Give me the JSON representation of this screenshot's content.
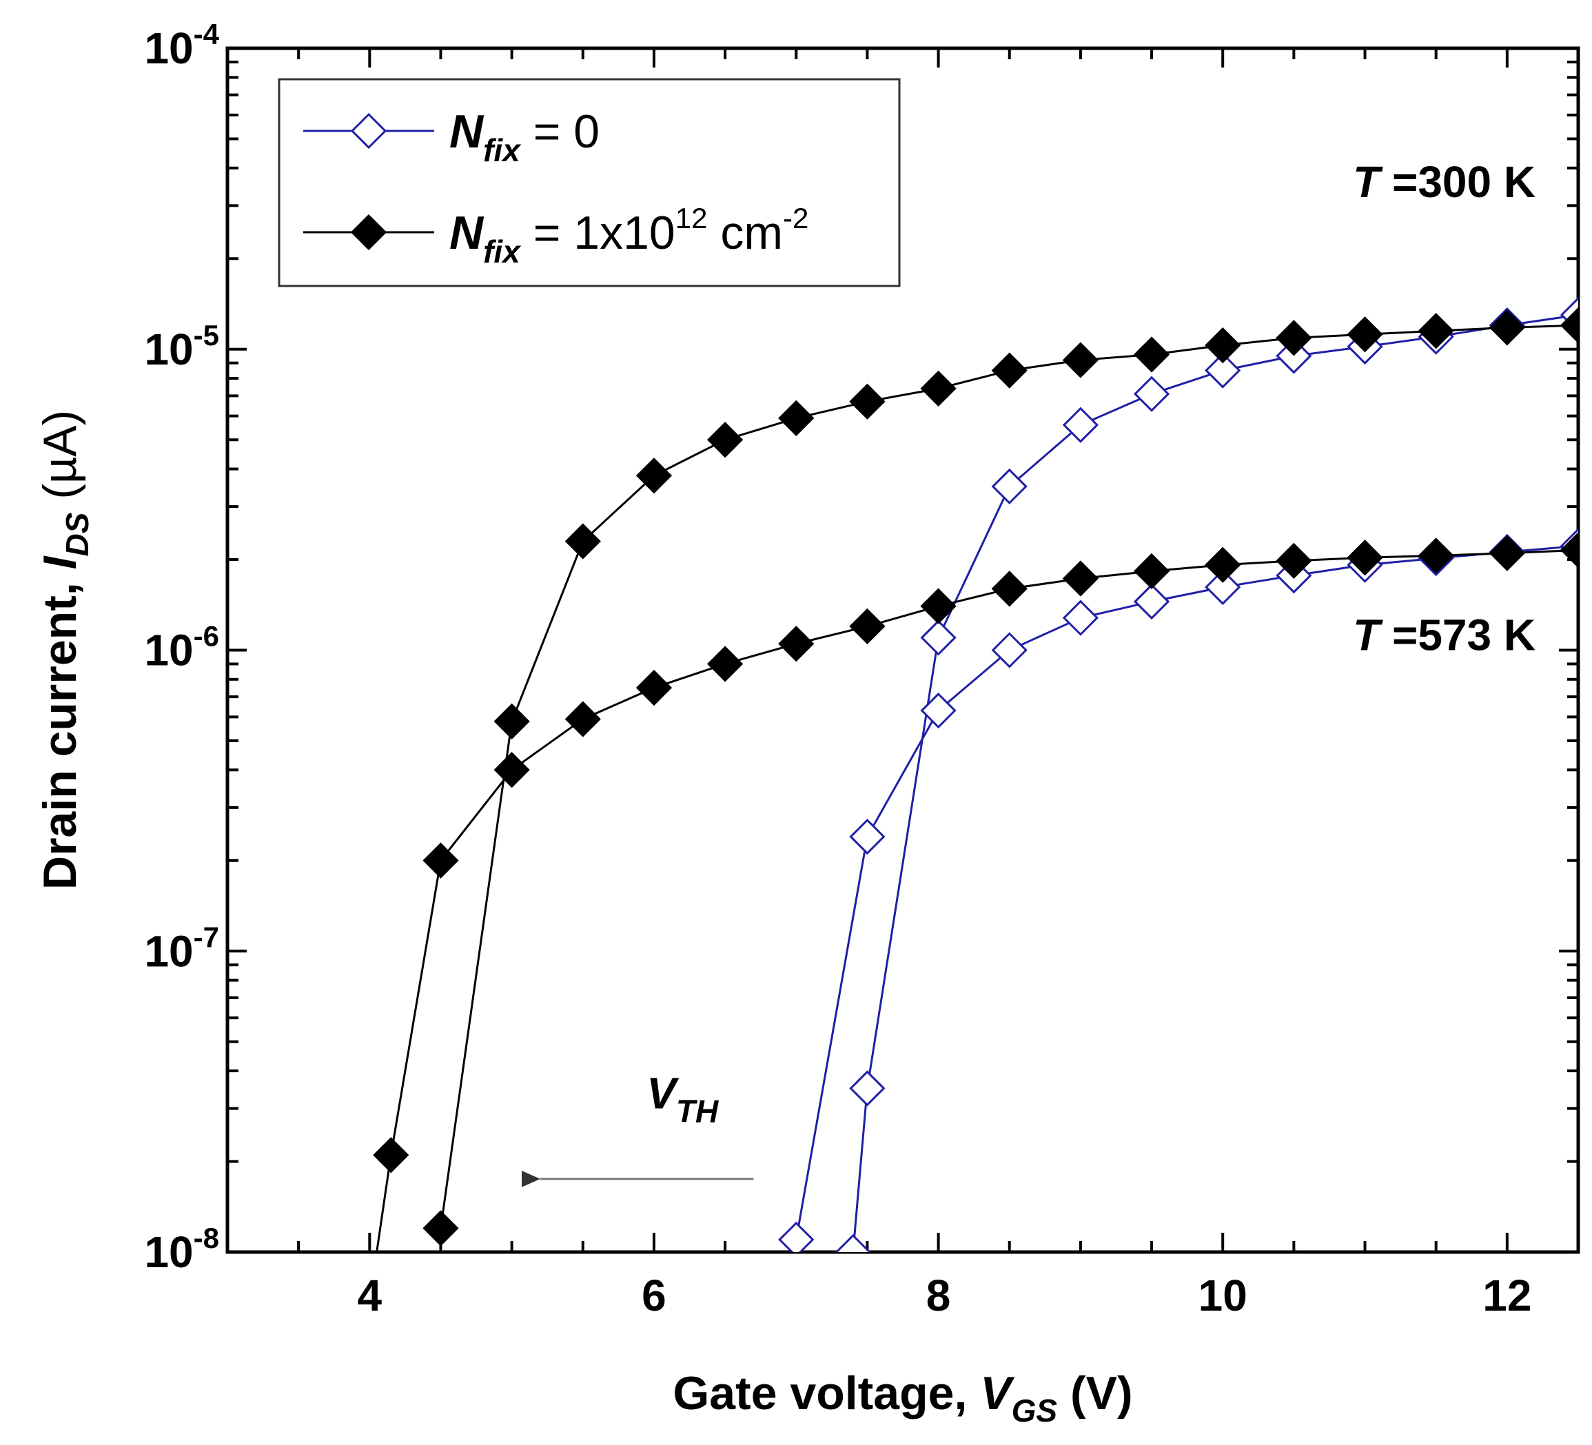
{
  "chart_data": {
    "type": "line",
    "title": "",
    "xlabel": "Gate voltage, V_GS (V)",
    "xlabel_parts": {
      "main": "Gate voltage, ",
      "sym": "V",
      "sub": "GS",
      "unit": " (V)"
    },
    "ylabel": "Drain current, I_DS (µA)",
    "ylabel_parts": {
      "main": "Drain current, ",
      "sym": "I",
      "sub": "DS",
      "unit": " (µA)"
    },
    "xlim": [
      3.0,
      12.5
    ],
    "ylim": [
      1e-08,
      0.0001
    ],
    "yscale": "log",
    "x_ticks": [
      4,
      6,
      8,
      10,
      12
    ],
    "x_tick_labels": [
      "4",
      "6",
      "8",
      "10",
      "12"
    ],
    "y_ticks": [
      {
        "value": 1e-08,
        "base": "10",
        "exp": "-8"
      },
      {
        "value": 1e-07,
        "base": "10",
        "exp": "-7"
      },
      {
        "value": 1e-06,
        "base": "10",
        "exp": "-6"
      },
      {
        "value": 1e-05,
        "base": "10",
        "exp": "-5"
      },
      {
        "value": 0.0001,
        "base": "10",
        "exp": "-4"
      }
    ],
    "grid": false,
    "legend_position": "top-left",
    "legend": [
      {
        "sym": "N",
        "sub": "fix",
        "text": " = 0",
        "marker": "open-diamond",
        "color": "#1f1fa8"
      },
      {
        "sym": "N",
        "sub": "fix",
        "text": " = 1x10",
        "sup": "12",
        "text2": " cm",
        "sup2": "-2",
        "marker": "filled-diamond",
        "color": "#000000"
      }
    ],
    "series": [
      {
        "name": "N_fix = 0, T = 300 K",
        "color": "#1f1fa8",
        "marker": "open-diamond",
        "x": [
          7.4,
          7.5,
          8.0,
          8.5,
          9.0,
          9.5,
          10.0,
          10.5,
          11.0,
          11.5,
          12.0,
          12.5
        ],
        "y": [
          1e-08,
          3.5e-08,
          1.1e-06,
          3.5e-06,
          5.6e-06,
          7.1e-06,
          8.5e-06,
          9.5e-06,
          1.02e-05,
          1.1e-05,
          1.2e-05,
          1.3e-05
        ]
      },
      {
        "name": "N_fix = 0, T = 573 K",
        "color": "#1f1fa8",
        "marker": "open-diamond",
        "x": [
          7.0,
          7.5,
          8.0,
          8.5,
          9.0,
          9.5,
          10.0,
          10.5,
          11.0,
          11.5,
          12.0,
          12.5
        ],
        "y": [
          1.1e-08,
          2.4e-07,
          6.3e-07,
          1e-06,
          1.28e-06,
          1.45e-06,
          1.62e-06,
          1.77e-06,
          1.92e-06,
          2.02e-06,
          2.12e-06,
          2.22e-06
        ]
      },
      {
        "name": "N_fix = 1x10^12 cm^-2, T = 300 K",
        "color": "#000000",
        "marker": "filled-diamond",
        "x": [
          4.5,
          5.0,
          5.5,
          6.0,
          6.5,
          7.0,
          7.5,
          8.0,
          8.5,
          9.0,
          9.5,
          10.0,
          10.5,
          11.0,
          11.5,
          12.0,
          12.5
        ],
        "y": [
          1.2e-08,
          5.8e-07,
          2.3e-06,
          3.8e-06,
          5e-06,
          5.9e-06,
          6.7e-06,
          7.4e-06,
          8.5e-06,
          9.2e-06,
          9.6e-06,
          1.03e-05,
          1.09e-05,
          1.12e-05,
          1.15e-05,
          1.18e-05,
          1.2e-05
        ]
      },
      {
        "name": "N_fix = 1x10^12 cm^-2, T = 573 K",
        "color": "#000000",
        "marker": "filled-diamond",
        "x": [
          4.15,
          4.5,
          5.0,
          5.5,
          6.0,
          6.5,
          7.0,
          7.5,
          8.0,
          8.5,
          9.0,
          9.5,
          10.0,
          10.5,
          11.0,
          11.5,
          12.0,
          12.5
        ],
        "y": [
          2.1e-08,
          2e-07,
          4e-07,
          5.9e-07,
          7.5e-07,
          9e-07,
          1.05e-06,
          1.2e-06,
          1.4e-06,
          1.6e-06,
          1.73e-06,
          1.83e-06,
          1.92e-06,
          1.98e-06,
          2.03e-06,
          2.06e-06,
          2.1e-06,
          2.15e-06
        ]
      }
    ],
    "line_only_extensions": [
      {
        "color": "#000000",
        "x": [
          4.05,
          4.15
        ],
        "y": [
          1e-08,
          2.1e-08
        ]
      },
      {
        "color": "#1f1fa8",
        "x": [
          7.33,
          7.4
        ],
        "y": [
          1e-08,
          1e-08
        ]
      }
    ],
    "annotations": [
      {
        "id": "t300",
        "sym": "T",
        "text": " =300 K",
        "x": 12.2,
        "y": 3.2e-05
      },
      {
        "id": "t573",
        "sym": "T",
        "text": " =573 K",
        "x": 12.2,
        "y": 1e-06
      },
      {
        "id": "vth",
        "sym": "V",
        "sub": "TH",
        "x": 6.2,
        "y": 3e-08
      }
    ],
    "arrow": {
      "label": "V_TH",
      "from_x": 6.7,
      "to_x": 5.2,
      "y": 1.75e-08,
      "color": "#777777"
    }
  }
}
